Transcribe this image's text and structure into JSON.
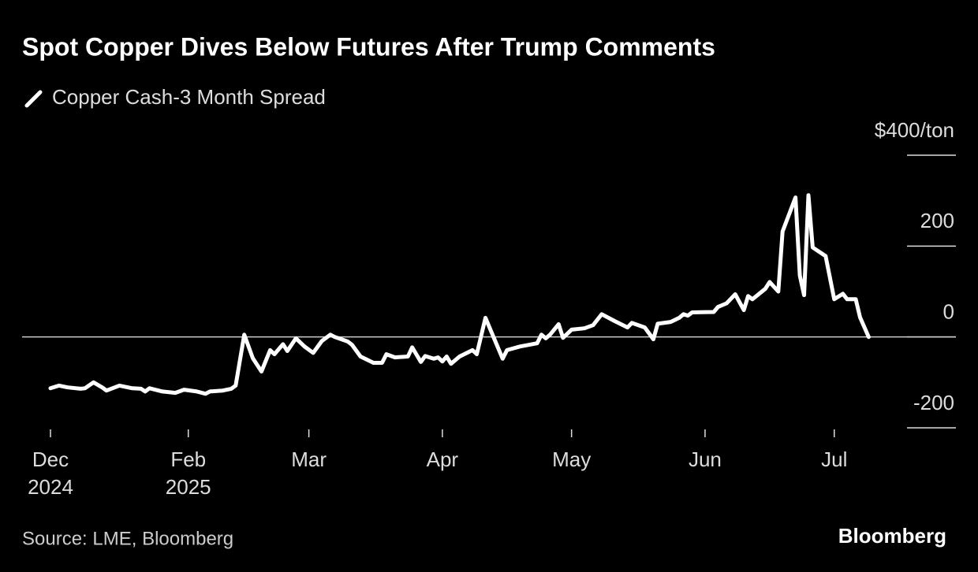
{
  "chart_data": {
    "type": "line",
    "title": "Spot Copper Dives Below Futures After Trump Comments",
    "source": "Source: LME, Bloomberg",
    "brand": "Bloomberg",
    "zero_line": true,
    "ylim": [
      -200,
      400
    ],
    "yticks": [
      {
        "value": 400,
        "label": "$400/ton"
      },
      200,
      0,
      -200
    ],
    "xlim": [
      "2024-12-31",
      "2025-08-01"
    ],
    "xticks": [
      {
        "value": "2024-12-31",
        "label": "Dec 2024"
      },
      {
        "value": "2025-02-01",
        "label": "Feb 2025"
      },
      {
        "value": "2025-03-01",
        "label": "Mar"
      },
      {
        "value": "2025-04-01",
        "label": "Apr"
      },
      {
        "value": "2025-05-01",
        "label": "May"
      },
      {
        "value": "2025-06-01",
        "label": "Jun"
      },
      {
        "value": "2025-07-01",
        "label": "Jul"
      }
    ],
    "x": [
      "2024-12-31",
      "2025-01-02",
      "2025-01-04",
      "2025-01-07",
      "2025-01-08",
      "2025-01-10",
      "2025-01-12",
      "2025-01-13",
      "2025-01-16",
      "2025-01-19",
      "2025-01-21",
      "2025-01-22",
      "2025-01-23",
      "2025-01-26",
      "2025-01-29",
      "2025-01-31",
      "2025-02-03",
      "2025-02-05",
      "2025-02-06",
      "2025-02-09",
      "2025-02-11",
      "2025-02-12",
      "2025-02-14",
      "2025-02-16",
      "2025-02-18",
      "2025-02-20",
      "2025-02-21",
      "2025-02-23",
      "2025-02-24",
      "2025-02-26",
      "2025-02-28",
      "2025-03-02",
      "2025-03-04",
      "2025-03-06",
      "2025-03-07",
      "2025-03-10",
      "2025-03-11",
      "2025-03-13",
      "2025-03-16",
      "2025-03-18",
      "2025-03-19",
      "2025-03-21",
      "2025-03-24",
      "2025-03-25",
      "2025-03-27",
      "2025-03-28",
      "2025-03-30",
      "2025-03-31",
      "2025-04-01",
      "2025-04-02",
      "2025-04-03",
      "2025-04-05",
      "2025-04-08",
      "2025-04-09",
      "2025-04-11",
      "2025-04-13",
      "2025-04-15",
      "2025-04-16",
      "2025-04-19",
      "2025-04-23",
      "2025-04-24",
      "2025-04-25",
      "2025-04-26",
      "2025-04-28",
      "2025-04-29",
      "2025-05-01",
      "2025-05-04",
      "2025-05-06",
      "2025-05-08",
      "2025-05-11",
      "2025-05-14",
      "2025-05-15",
      "2025-05-18",
      "2025-05-20",
      "2025-05-21",
      "2025-05-24",
      "2025-05-26",
      "2025-05-27",
      "2025-05-28",
      "2025-05-29",
      "2025-06-03",
      "2025-06-04",
      "2025-06-06",
      "2025-06-08",
      "2025-06-10",
      "2025-06-11",
      "2025-06-12",
      "2025-06-15",
      "2025-06-16",
      "2025-06-18",
      "2025-06-19",
      "2025-06-22",
      "2025-06-23",
      "2025-06-24",
      "2025-06-25",
      "2025-06-26",
      "2025-06-29",
      "2025-07-01",
      "2025-07-03",
      "2025-07-04",
      "2025-07-06",
      "2025-07-07",
      "2025-07-09"
    ],
    "series": [
      {
        "name": "Copper Cash-3 Month Spread",
        "color": "#ffffff",
        "values": [
          -113,
          -107,
          -111,
          -114,
          -113,
          -100,
          -111,
          -118,
          -107,
          -113,
          -114,
          -120,
          -113,
          -120,
          -123,
          -116,
          -120,
          -125,
          -120,
          -118,
          -114,
          -107,
          5,
          -47,
          -76,
          -29,
          -38,
          -16,
          -31,
          -3,
          -21,
          -35,
          -9,
          5,
          0,
          -10,
          -17,
          -43,
          -57,
          -57,
          -38,
          -45,
          -43,
          -23,
          -55,
          -42,
          -48,
          -45,
          -54,
          -43,
          -59,
          -43,
          -29,
          -38,
          42,
          -3,
          -48,
          -29,
          -21,
          -14,
          5,
          -3,
          5,
          28,
          -2,
          16,
          19,
          26,
          50,
          35,
          21,
          31,
          21,
          -5,
          29,
          33,
          42,
          50,
          47,
          54,
          55,
          66,
          74,
          94,
          59,
          90,
          83,
          106,
          121,
          100,
          232,
          307,
          135,
          92,
          312,
          197,
          178,
          83,
          95,
          83,
          83,
          43,
          0
        ]
      }
    ]
  }
}
